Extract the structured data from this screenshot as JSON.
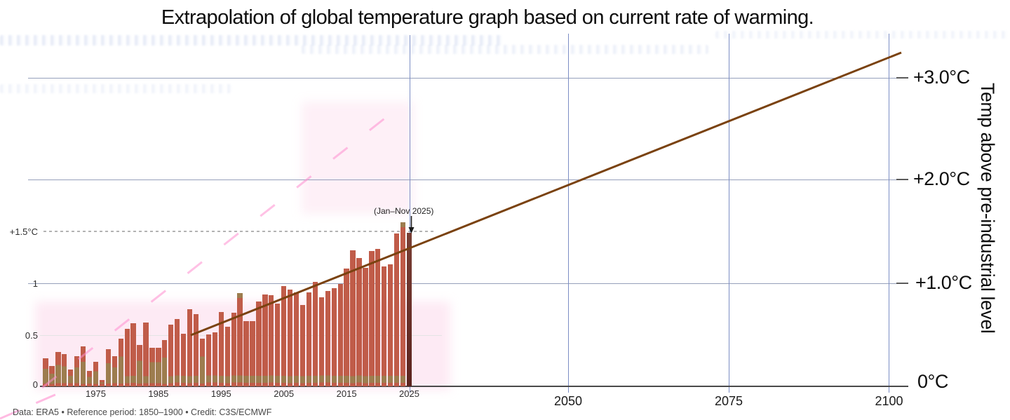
{
  "title": "Extrapolation of global temperature graph based on current rate of warming.",
  "annotation": "(Jan–Nov 2025)",
  "credit": "Data: ERA5 • Reference period: 1850–1900 • Credit: C3S/ECMWF",
  "left_axis": {
    "labels": [
      "+1.5°C",
      "1",
      "0.5",
      "0"
    ]
  },
  "right_axis": {
    "labels": [
      "+3.0°C",
      "+2.0°C",
      "+1.0°C",
      "0°C"
    ],
    "title": "Temp above pre-industrial level"
  },
  "x_axis": {
    "historical_ticks": [
      "1975",
      "1985",
      "1995",
      "2005",
      "2015",
      "2025"
    ],
    "future_ticks": [
      "2050",
      "2075",
      "2100"
    ]
  },
  "colors": {
    "bar": "#c05c49",
    "bar_base_band": "#9d7d4f",
    "bar_highlight_top": "#7a3f35",
    "bar_highlight_bottom": "#5c241f",
    "extrapolation_line": "#7a4210",
    "grid_blue": "#7c8ec5",
    "reference_dash": "#b3b3b3",
    "ghost_pink": "#ff8fd0"
  },
  "chart_data": {
    "type": "bar",
    "title": "Extrapolation of global temperature graph based on current rate of warming.",
    "xlabel": "",
    "ylabel": "Temp above pre-industrial level (°C)",
    "ylim": [
      0,
      3.3
    ],
    "xlim": [
      1966,
      2102
    ],
    "grid": true,
    "years": [
      1967,
      1968,
      1969,
      1970,
      1971,
      1972,
      1973,
      1974,
      1975,
      1976,
      1977,
      1978,
      1979,
      1980,
      1981,
      1982,
      1983,
      1984,
      1985,
      1986,
      1987,
      1988,
      1989,
      1990,
      1991,
      1992,
      1993,
      1994,
      1995,
      1996,
      1997,
      1998,
      1999,
      2000,
      2001,
      2002,
      2003,
      2004,
      2005,
      2006,
      2007,
      2008,
      2009,
      2010,
      2011,
      2012,
      2013,
      2014,
      2015,
      2016,
      2017,
      2018,
      2019,
      2020,
      2021,
      2022,
      2023,
      2024,
      2025
    ],
    "values": [
      0.27,
      0.2,
      0.33,
      0.31,
      0.16,
      0.29,
      0.39,
      0.15,
      0.24,
      0.06,
      0.36,
      0.29,
      0.46,
      0.56,
      0.61,
      0.4,
      0.62,
      0.37,
      0.37,
      0.45,
      0.6,
      0.65,
      0.51,
      0.75,
      0.7,
      0.46,
      0.5,
      0.52,
      0.72,
      0.58,
      0.71,
      0.9,
      0.63,
      0.63,
      0.82,
      0.89,
      0.88,
      0.8,
      0.97,
      0.94,
      0.91,
      0.79,
      0.91,
      1.01,
      0.86,
      0.92,
      0.95,
      0.99,
      1.14,
      1.32,
      1.24,
      1.15,
      1.31,
      1.33,
      1.16,
      1.18,
      1.48,
      1.59,
      1.49
    ],
    "highlight_year": 2025,
    "highlight_note": "(Jan–Nov 2025)",
    "reference_line": {
      "value": 1.5,
      "label": "+1.5°C",
      "style": "dashed"
    },
    "extrapolation_line": {
      "style": "solid",
      "from": {
        "year": 1990,
        "value": 0.5
      },
      "to": {
        "year": 2100,
        "value": 3.22
      },
      "rate_per_decade": 0.26
    },
    "right_tick_values": [
      3.0,
      2.0,
      1.0,
      0.0
    ],
    "legend": null
  }
}
